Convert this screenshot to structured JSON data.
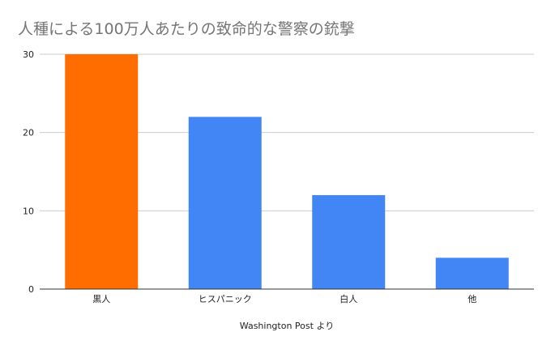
{
  "chart_data": {
    "type": "bar",
    "title": "人種による100万人あたりの致命的な警察の銃撃",
    "xlabel": "Washington Post より",
    "ylabel": "",
    "categories": [
      "黒人",
      "ヒスパニック",
      "白人",
      "他"
    ],
    "values": [
      30,
      22,
      12,
      4
    ],
    "ylim": [
      0,
      30
    ],
    "yticks": [
      0,
      10,
      20,
      30
    ],
    "grid": true,
    "legend": "none",
    "colors": [
      "#ff6d01",
      "#4285f4",
      "#4285f4",
      "#4285f4"
    ]
  }
}
